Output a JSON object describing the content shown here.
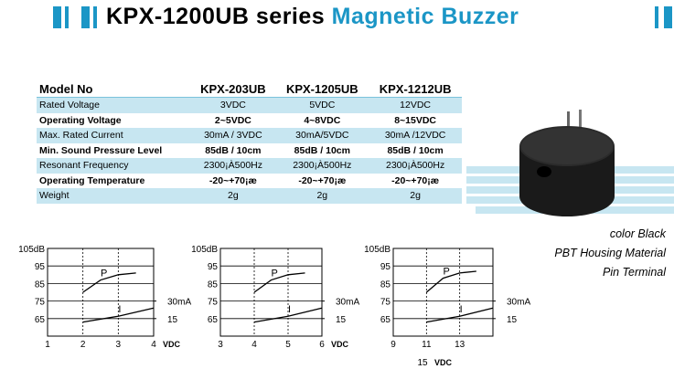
{
  "header": {
    "title": "KPX-1200UB series",
    "title_highlight": "Magnetic Buzzer"
  },
  "table": {
    "header": [
      "Model No",
      "KPX-203UB",
      "KPX-1205UB",
      "KPX-1212UB"
    ],
    "rows": [
      [
        "Rated Voltage",
        "3VDC",
        "5VDC",
        "12VDC"
      ],
      [
        "Operating Voltage",
        "2~5VDC",
        "4~8VDC",
        "8~15VDC"
      ],
      [
        "Max. Rated Current",
        "30mA / 3VDC",
        "30mA/5VDC",
        "30mA /12VDC"
      ],
      [
        "Min. Sound Pressure Level",
        "85dB / 10cm",
        "85dB / 10cm",
        "85dB / 10cm"
      ],
      [
        "Resonant Frequency",
        "2300¡À500Hz",
        "2300¡À500Hz",
        "2300¡À500Hz"
      ],
      [
        "Operating Temperature",
        "-20~+70¡æ",
        "-20~+70¡æ",
        "-20~+70¡æ"
      ],
      [
        "Weight",
        "2g",
        "2g",
        "2g"
      ]
    ]
  },
  "features": [
    "color Black",
    "PBT Housing Material",
    "Pin Terminal"
  ],
  "graphs": [
    {
      "type": "line",
      "xlim": [
        1,
        4
      ],
      "xticks": [
        1,
        2,
        3,
        4
      ],
      "x_unit": "VDC",
      "ylim": [
        55,
        105
      ],
      "yticks": [
        65,
        75,
        85,
        95,
        {
          "value": 105,
          "label": "105dB"
        }
      ],
      "y2lim": [
        0,
        75
      ],
      "y2ticks": [
        15,
        {
          "value": 30,
          "label": "30mA"
        }
      ],
      "series": [
        {
          "name": "P",
          "x": [
            2,
            2.5,
            3,
            3.5
          ],
          "values": [
            80,
            87,
            90,
            91
          ]
        },
        {
          "name": "I",
          "axis": "y2",
          "x": [
            2,
            3,
            4
          ],
          "values": [
            12,
            17,
            24
          ]
        }
      ]
    },
    {
      "type": "line",
      "xlim": [
        3,
        6
      ],
      "xticks": [
        3,
        4,
        5,
        6
      ],
      "x_unit": "VDC",
      "ylim": [
        55,
        105
      ],
      "yticks": [
        65,
        75,
        85,
        95,
        {
          "value": 105,
          "label": "105dB"
        }
      ],
      "y2lim": [
        0,
        75
      ],
      "y2ticks": [
        15,
        {
          "value": 30,
          "label": "30mA"
        }
      ],
      "series": [
        {
          "name": "P",
          "x": [
            4,
            4.5,
            5,
            5.5
          ],
          "values": [
            80,
            87,
            90,
            91
          ]
        },
        {
          "name": "I",
          "axis": "y2",
          "x": [
            4,
            5,
            6
          ],
          "values": [
            12,
            17,
            24
          ]
        }
      ]
    },
    {
      "type": "line",
      "xlim": [
        9,
        15
      ],
      "xticks": [
        9,
        11,
        13,
        15
      ],
      "x_unit": "VDC",
      "ylim": [
        55,
        105
      ],
      "yticks": [
        65,
        75,
        85,
        95,
        {
          "value": 105,
          "label": "105dB"
        }
      ],
      "y2lim": [
        0,
        75
      ],
      "y2ticks": [
        15,
        {
          "value": 30,
          "label": "30mA"
        }
      ],
      "series": [
        {
          "name": "P",
          "x": [
            11,
            12,
            13,
            14
          ],
          "values": [
            80,
            88,
            91,
            92
          ]
        },
        {
          "name": "I",
          "axis": "y2",
          "x": [
            11,
            13,
            15
          ],
          "values": [
            12,
            17,
            24
          ]
        }
      ]
    }
  ]
}
